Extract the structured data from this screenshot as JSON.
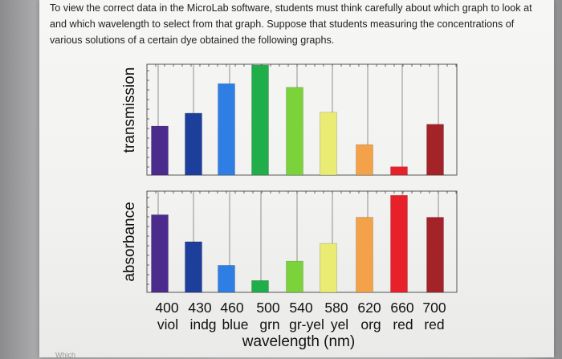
{
  "intro_text": "To view the correct data in the MicroLab software, students must think carefully about which graph to look at and which wavelength to select from that graph. Suppose that students measuring the concentrations of various solutions of a certain dye obtained the following graphs.",
  "chart_data": [
    {
      "type": "bar",
      "ylabel": "transmission",
      "categories": [
        "400",
        "430",
        "460",
        "500",
        "540",
        "580",
        "620",
        "660",
        "700"
      ],
      "values": [
        53,
        67,
        99,
        119,
        95,
        68,
        33,
        9,
        55
      ],
      "colors": [
        "#4b2b8c",
        "#1d3e9a",
        "#2f7ee3",
        "#1fae4a",
        "#7bd33b",
        "#eaeb73",
        "#f3a24a",
        "#e8202a",
        "#a32328"
      ],
      "grid": true
    },
    {
      "type": "bar",
      "ylabel": "absorbance",
      "categories": [
        "400",
        "430",
        "460",
        "500",
        "540",
        "580",
        "620",
        "660",
        "700"
      ],
      "category_labels": [
        "viol",
        "indg",
        "blue",
        "grn",
        "gr-yel",
        "yel",
        "org",
        "red",
        "red"
      ],
      "xlabel": "wavelength (nm)",
      "values": [
        92,
        60,
        32,
        14,
        37,
        58,
        89,
        115,
        89
      ],
      "colors": [
        "#4b2b8c",
        "#1d3e9a",
        "#2f7ee3",
        "#1fae4a",
        "#7bd33b",
        "#eaeb73",
        "#f3a24a",
        "#e8202a",
        "#a32328"
      ],
      "grid": true
    }
  ],
  "footer_stub": "Which"
}
